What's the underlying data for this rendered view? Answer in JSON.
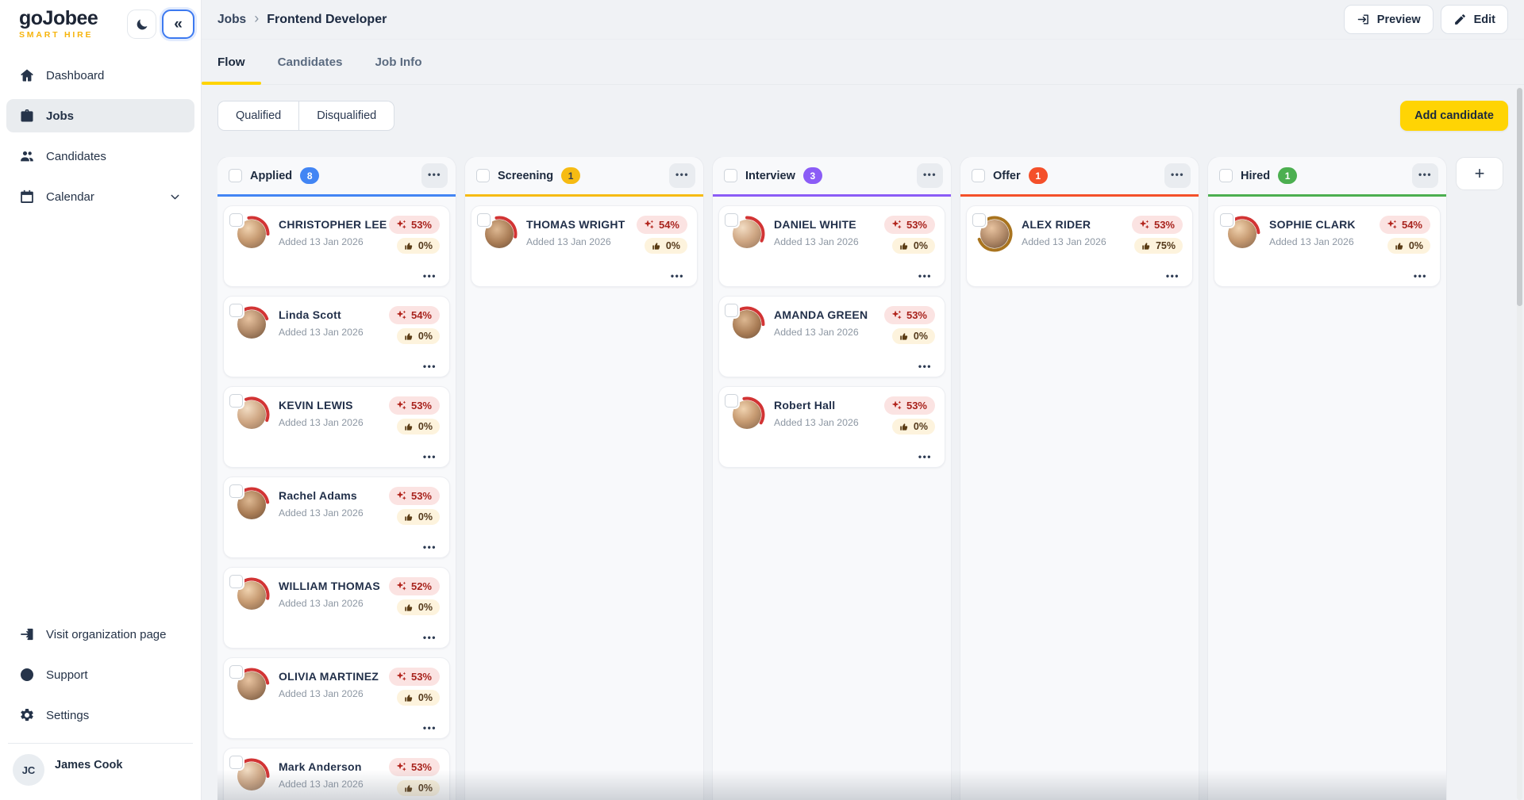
{
  "brand": {
    "name": "goJobee",
    "tagline": "SMART HIRE"
  },
  "sidebar": {
    "nav": [
      {
        "label": "Dashboard",
        "icon": "home-icon",
        "active": false,
        "expandable": false
      },
      {
        "label": "Jobs",
        "icon": "briefcase-icon",
        "active": true,
        "expandable": false
      },
      {
        "label": "Candidates",
        "icon": "users-icon",
        "active": false,
        "expandable": false
      },
      {
        "label": "Calendar",
        "icon": "calendar-icon",
        "active": false,
        "expandable": true
      }
    ],
    "footer_nav": [
      {
        "label": "Visit organization page",
        "icon": "external-link-icon"
      },
      {
        "label": "Support",
        "icon": "lifebuoy-icon"
      },
      {
        "label": "Settings",
        "icon": "gear-icon"
      }
    ],
    "user": {
      "initials": "JC",
      "name": "James Cook"
    }
  },
  "header": {
    "breadcrumb": {
      "parent": "Jobs",
      "separator": "›",
      "current": "Frontend Developer"
    },
    "preview_label": "Preview",
    "edit_label": "Edit"
  },
  "tabs": [
    {
      "label": "Flow",
      "active": true
    },
    {
      "label": "Candidates",
      "active": false
    },
    {
      "label": "Job Info",
      "active": false
    }
  ],
  "toolbar": {
    "filters": [
      {
        "label": "Qualified"
      },
      {
        "label": "Disqualified"
      }
    ],
    "add_candidate_label": "Add candidate"
  },
  "board": {
    "add_column_label": "+",
    "columns": [
      {
        "title": "Applied",
        "count": "8",
        "accent": "#4285f4",
        "badge_text_color": "#ffffff",
        "cards": [
          {
            "name": "CHRISTOPHER LEE",
            "added": "Added 13 Jan 2026",
            "match": "53%",
            "rating": "0%",
            "ring": {
              "color": "#d23434",
              "start": -10,
              "sweep": 100
            }
          },
          {
            "name": "Linda Scott",
            "added": "Added 13 Jan 2026",
            "match": "54%",
            "rating": "0%",
            "ring": {
              "color": "#d23434",
              "start": -50,
              "sweep": 120
            }
          },
          {
            "name": "KEVIN LEWIS",
            "added": "Added 13 Jan 2026",
            "match": "53%",
            "rating": "0%",
            "ring": {
              "color": "#d23434",
              "start": -20,
              "sweep": 130
            }
          },
          {
            "name": "Rachel Adams",
            "added": "Added 13 Jan 2026",
            "match": "53%",
            "rating": "0%",
            "ring": {
              "color": "#d23434",
              "start": -40,
              "sweep": 120
            }
          },
          {
            "name": "WILLIAM THOMAS",
            "added": "Added 13 Jan 2026",
            "match": "52%",
            "rating": "0%",
            "ring": {
              "color": "#d23434",
              "start": -30,
              "sweep": 130
            }
          },
          {
            "name": "OLIVIA MARTINEZ",
            "added": "Added 13 Jan 2026",
            "match": "53%",
            "rating": "0%",
            "ring": {
              "color": "#d23434",
              "start": -50,
              "sweep": 130
            }
          },
          {
            "name": "Mark Anderson",
            "added": "Added 13 Jan 2026",
            "match": "53%",
            "rating": "0%",
            "ring": {
              "color": "#d23434",
              "start": -30,
              "sweep": 120
            }
          }
        ]
      },
      {
        "title": "Screening",
        "count": "1",
        "accent": "#f6bb13",
        "badge_text_color": "#333c4e",
        "cards": [
          {
            "name": "THOMAS WRIGHT",
            "added": "Added 13 Jan 2026",
            "match": "54%",
            "rating": "0%",
            "ring": {
              "color": "#d23434",
              "start": -10,
              "sweep": 110
            }
          }
        ]
      },
      {
        "title": "Interview",
        "count": "3",
        "accent": "#8b5cf6",
        "badge_text_color": "#ffffff",
        "cards": [
          {
            "name": "DANIEL WHITE",
            "added": "Added 13 Jan 2026",
            "match": "53%",
            "rating": "0%",
            "ring": {
              "color": "#d23434",
              "start": 0,
              "sweep": 115
            }
          },
          {
            "name": "AMANDA GREEN",
            "added": "Added 13 Jan 2026",
            "match": "53%",
            "rating": "0%",
            "ring": {
              "color": "#d23434",
              "start": -60,
              "sweep": 150
            }
          },
          {
            "name": "Robert Hall",
            "added": "Added 13 Jan 2026",
            "match": "53%",
            "rating": "0%",
            "ring": {
              "color": "#d23434",
              "start": -10,
              "sweep": 130
            }
          }
        ]
      },
      {
        "title": "Offer",
        "count": "1",
        "accent": "#f4502a",
        "badge_text_color": "#ffffff",
        "cards": [
          {
            "name": "ALEX RIDER",
            "added": "Added 13 Jan 2026",
            "match": "53%",
            "rating": "75%",
            "ring": {
              "color": "#a9741f",
              "start": -35,
              "sweep": 285
            }
          }
        ]
      },
      {
        "title": "Hired",
        "count": "1",
        "accent": "#4caf50",
        "badge_text_color": "#ffffff",
        "cards": [
          {
            "name": "SOPHIE CLARK",
            "added": "Added 13 Jan 2026",
            "match": "54%",
            "rating": "0%",
            "ring": {
              "color": "#d23434",
              "start": -30,
              "sweep": 115
            }
          }
        ]
      }
    ]
  },
  "colors": {
    "accent_yellow": "#ffd404",
    "match_pill_bg": "#fbe3e2",
    "match_pill_text": "#a8231d",
    "rating_pill_bg": "#fdf3dd",
    "rating_pill_text": "#53381a"
  }
}
